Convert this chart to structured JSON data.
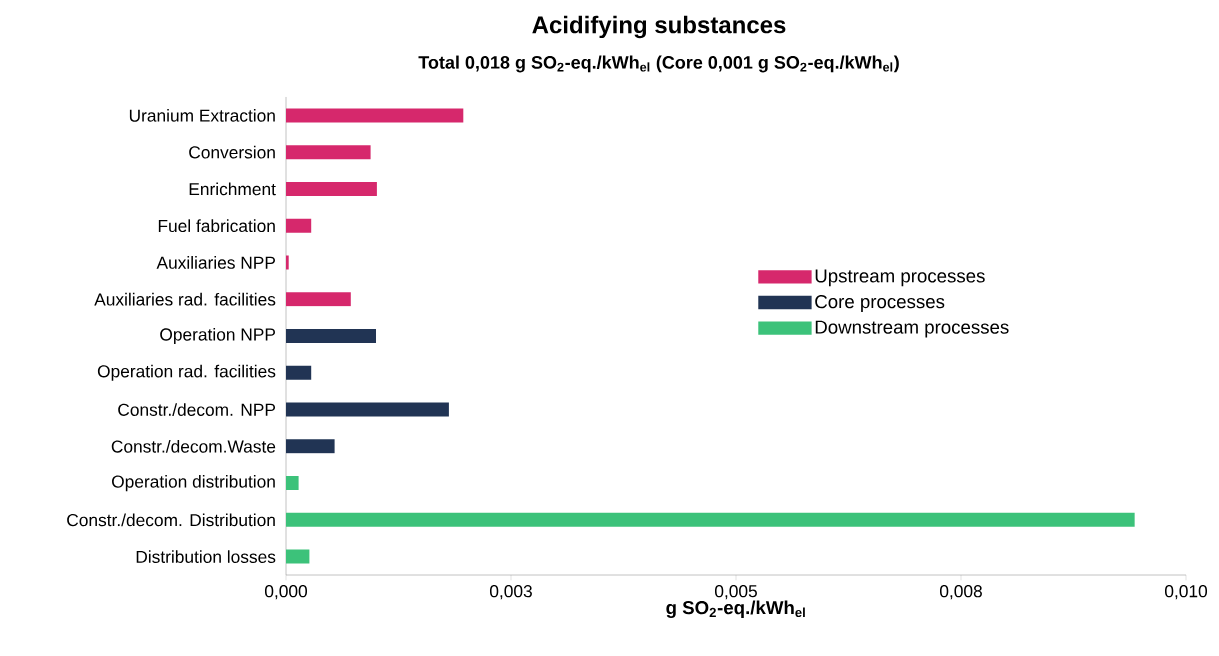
{
  "chart_data": {
    "type": "bar",
    "orientation": "horizontal",
    "title": "Acidifying substances",
    "subtitle": "Total 0,018 g SO$_{2}$-eq./kWh$_{el}$  (Core 0,001 g SO$_{2}$-eq./kWh$_{el}$)",
    "xlabel": "g SO$_{2}$-eq./kWh$_{el}$",
    "categories": [
      "Uranium Extraction",
      "Conversion",
      "Enrichment",
      "Fuel fabrication",
      "Auxiliaries NPP",
      "Auxiliaries rad. facilities",
      "Operation NPP",
      "Operation rad. facilities",
      "Constr./decom. NPP",
      "Constr./decom.Waste",
      "Operation distribution",
      "Constr./decom. Distribution",
      "Distribution losses"
    ],
    "series": [
      {
        "name": "Upstream processes",
        "color": "#d6286c",
        "values": [
          0.00197,
          0.00094,
          0.00101,
          0.00028,
          3e-05,
          0.00072,
          null,
          null,
          null,
          null,
          null,
          null,
          null
        ]
      },
      {
        "name": "Core processes",
        "color": "#213454",
        "values": [
          null,
          null,
          null,
          null,
          null,
          null,
          0.001,
          0.00028,
          0.00181,
          0.00054,
          null,
          null,
          null
        ]
      },
      {
        "name": "Downstream processes",
        "color": "#3cc27a",
        "values": [
          null,
          null,
          null,
          null,
          null,
          null,
          null,
          null,
          null,
          null,
          0.00014,
          0.00943,
          0.00026
        ]
      }
    ],
    "xlim": [
      0,
      0.01
    ],
    "xticks": [
      {
        "value": 0,
        "label": "0,000"
      },
      {
        "value": 0.0025,
        "label": "0,003"
      },
      {
        "value": 0.005,
        "label": "0,005"
      },
      {
        "value": 0.0075,
        "label": "0,008"
      },
      {
        "value": 0.01,
        "label": "0,010"
      }
    ],
    "grid": false,
    "legend": "right"
  }
}
